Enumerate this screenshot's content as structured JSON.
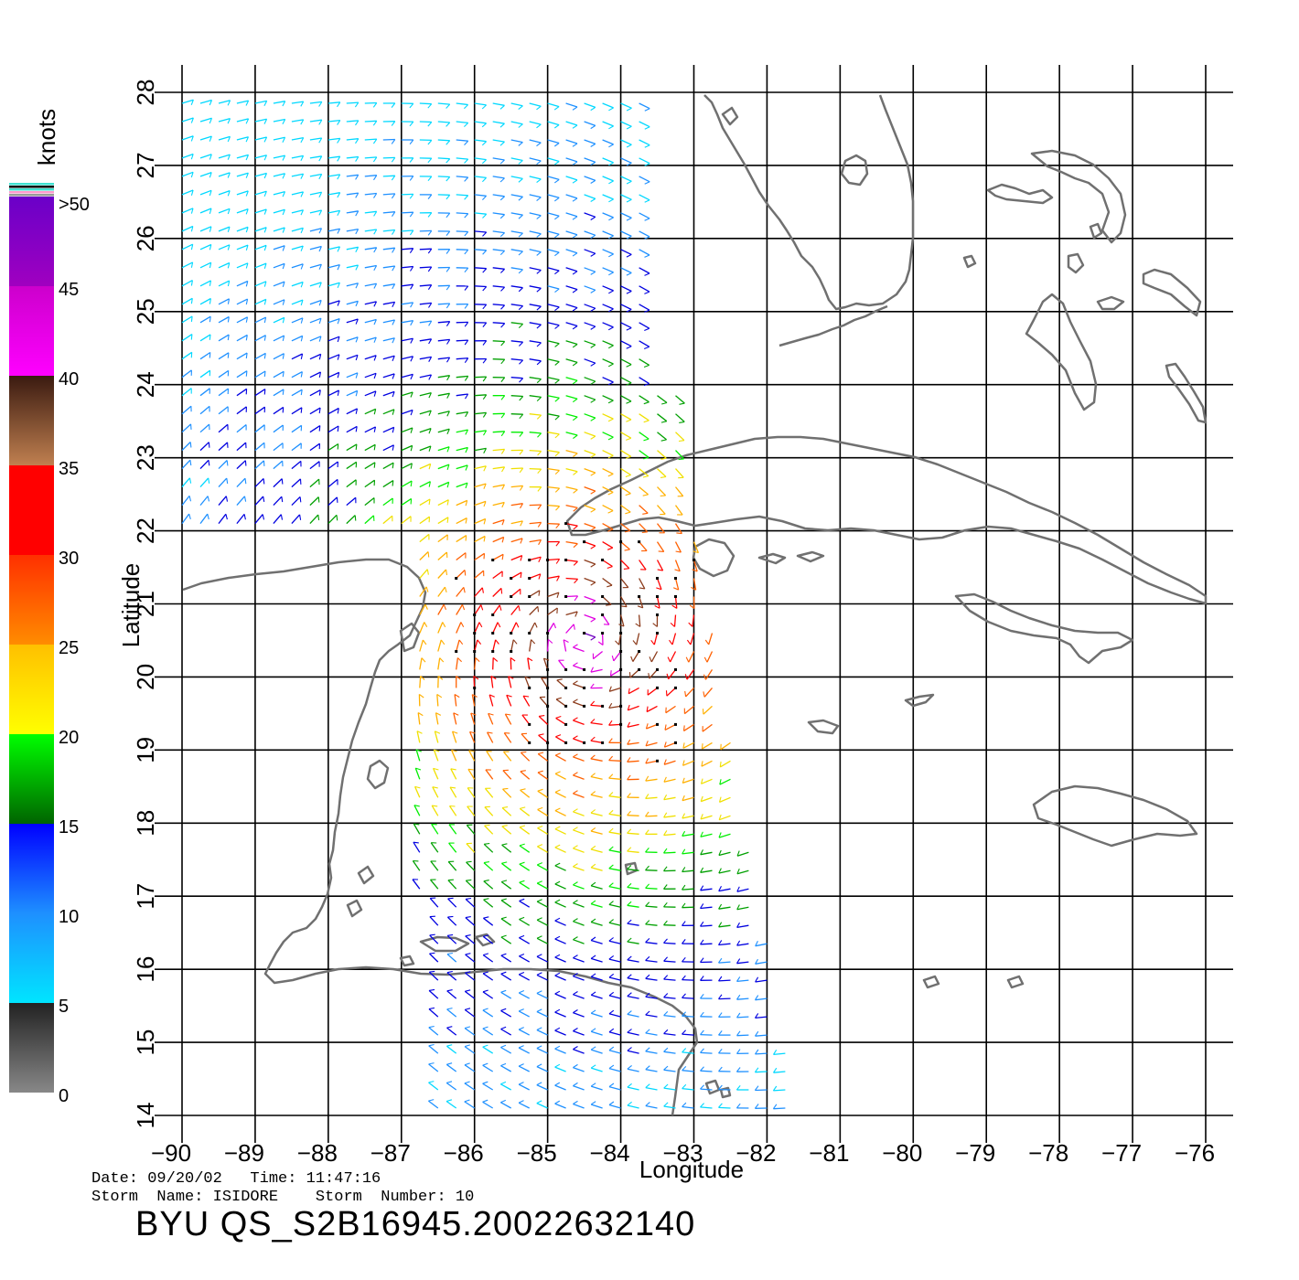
{
  "info": {
    "date_line": "Date: 09/20/02   Time: 11:47:16",
    "storm_line": "Storm  Name: ISIDORE    Storm  Number: 10",
    "product_title": "BYU  QS_S2B16945.20022632140"
  },
  "map": {
    "x_axis_label": "Longitude",
    "y_axis_label": "Latitude",
    "lon_range": [
      -90,
      -76
    ],
    "lat_range": [
      14,
      28
    ],
    "lon_ticks": [
      -90,
      -89,
      -88,
      -87,
      -86,
      -85,
      -84,
      -83,
      -82,
      -81,
      -80,
      -79,
      -78,
      -77,
      -76
    ],
    "lat_ticks": [
      14,
      15,
      16,
      17,
      18,
      19,
      20,
      21,
      22,
      23,
      24,
      25,
      26,
      27,
      28
    ],
    "grid": true,
    "coastline_color": "#707070",
    "regions": [
      "Florida",
      "Yucatan Peninsula",
      "Cuba",
      "Bahamas",
      "Jamaica",
      "Honduras",
      "Belize"
    ]
  },
  "colorbar": {
    "unit_label": "knots",
    "tick_labels": [
      "0",
      "5",
      "10",
      "15",
      "20",
      "25",
      "30",
      "35",
      "40",
      "45",
      ">50"
    ],
    "segments": [
      {
        "from": 0,
        "to": 5,
        "colors": [
          "#888888",
          "#222222"
        ]
      },
      {
        "from": 5,
        "to": 10,
        "colors": [
          "#00e5ff",
          "#1e90ff"
        ]
      },
      {
        "from": 10,
        "to": 15,
        "colors": [
          "#1e90ff",
          "#0000ff"
        ]
      },
      {
        "from": 15,
        "to": 20,
        "colors": [
          "#006400",
          "#00ff00"
        ]
      },
      {
        "from": 20,
        "to": 25,
        "colors": [
          "#ffff00",
          "#ffc000"
        ]
      },
      {
        "from": 25,
        "to": 30,
        "colors": [
          "#ff8c00",
          "#ff3000"
        ]
      },
      {
        "from": 30,
        "to": 35,
        "colors": [
          "#ff0000",
          "#ff0000"
        ]
      },
      {
        "from": 35,
        "to": 40,
        "colors": [
          "#c08050",
          "#3a1a10"
        ]
      },
      {
        "from": 40,
        "to": 45,
        "colors": [
          "#ff00ff",
          "#cc00cc"
        ]
      },
      {
        "from": 45,
        "to": 50,
        "colors": [
          "#a000c0",
          "#6a00c8"
        ]
      }
    ]
  },
  "wind_swaths": [
    {
      "name": "northern-swath",
      "lon_min": -90,
      "lon_max": -83.5,
      "lat_min": 22,
      "lat_max": 28
    },
    {
      "name": "southern-swath",
      "lon_min": -87,
      "lon_max": -81.5,
      "lat_min": 14,
      "lat_max": 22
    }
  ],
  "storm_center": {
    "lon": -84.5,
    "lat": 20.5,
    "max_wind_knots": 45
  }
}
